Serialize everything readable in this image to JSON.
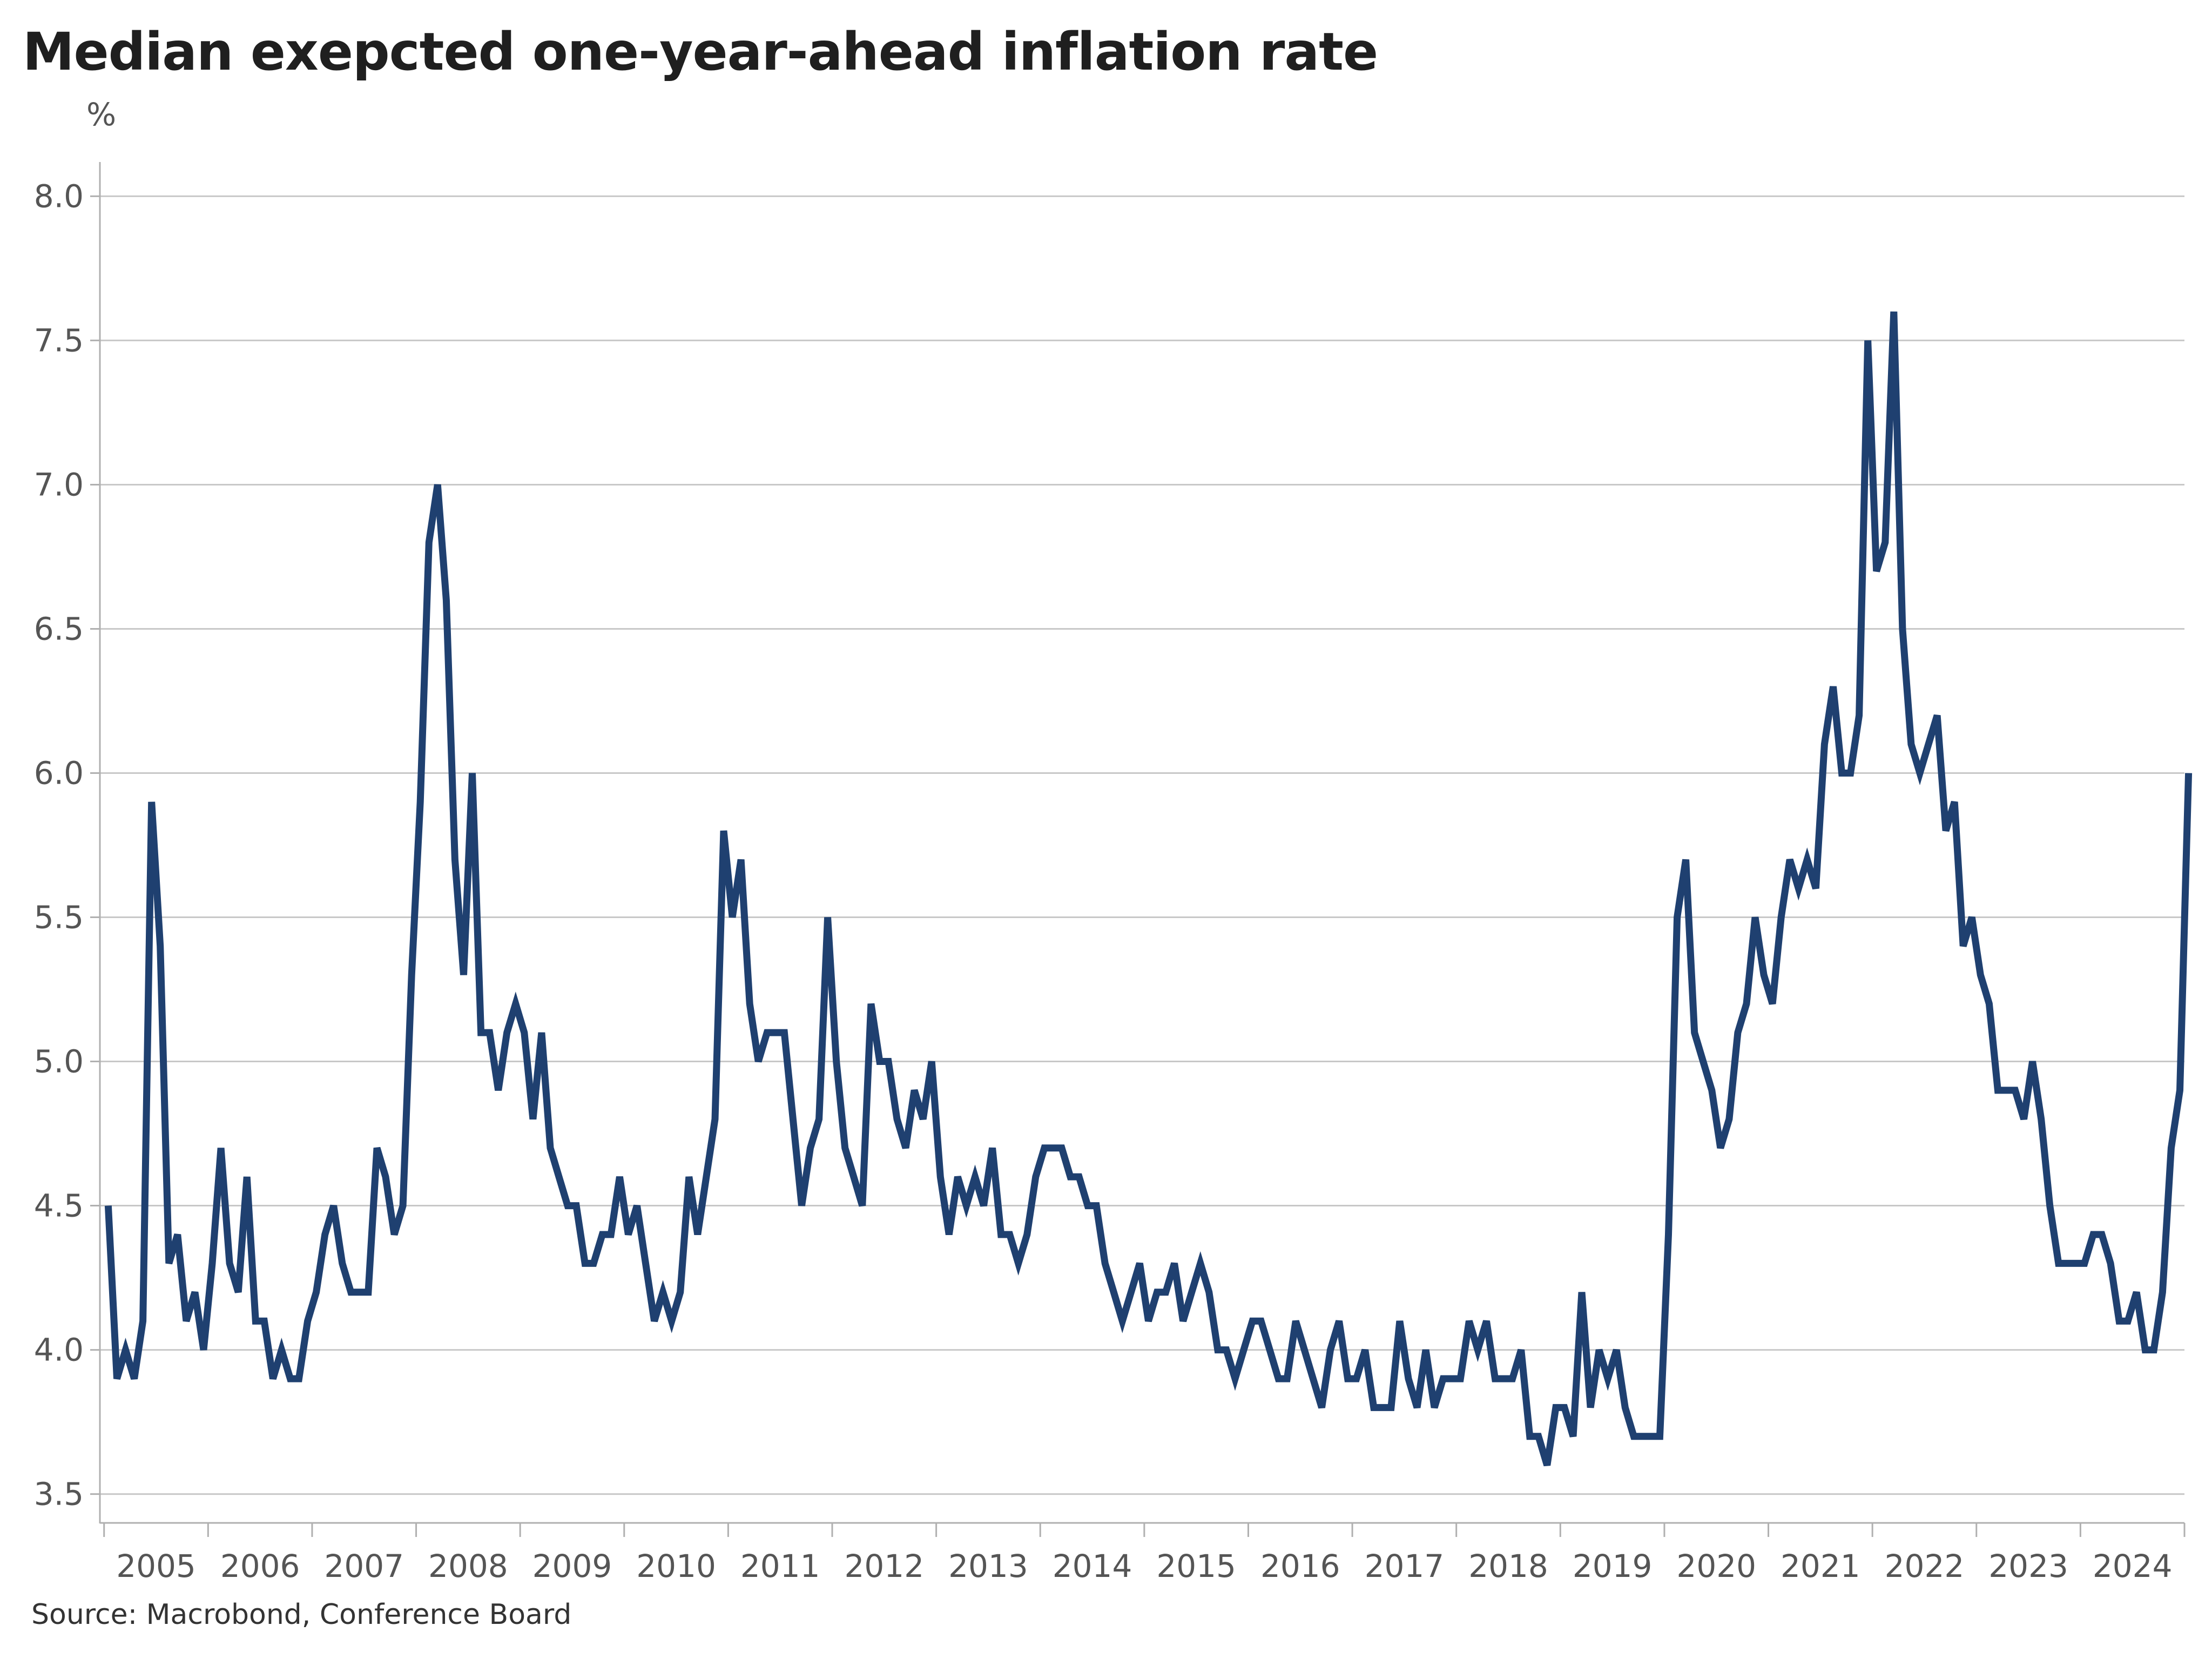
{
  "source": "Source: Macrobond, Conference Board",
  "colors": {
    "line": "#1f4070",
    "grid": "#c8c8c8",
    "axis": "#b0b0b0",
    "text": "#555555"
  },
  "chart_data": {
    "type": "line",
    "title": "Median exepcted one-year-ahead inflation rate",
    "ylabel": "%",
    "xlabel": "",
    "ylim": [
      3.4,
      8.1
    ],
    "xlim": [
      2004.96,
      2025.0
    ],
    "yticks": [
      3.5,
      4.0,
      4.5,
      5.0,
      5.5,
      6.0,
      6.5,
      7.0,
      7.5,
      8.0
    ],
    "ytick_labels": [
      "3.5",
      "4.0",
      "4.5",
      "5.0",
      "5.5",
      "6.0",
      "6.5",
      "7.0",
      "7.5",
      "8.0"
    ],
    "xtick_boundaries": [
      2005,
      2006,
      2007,
      2008,
      2009,
      2010,
      2011,
      2012,
      2013,
      2014,
      2015,
      2016,
      2017,
      2018,
      2019,
      2020,
      2021,
      2022,
      2023,
      2024,
      2025
    ],
    "xtick_labels": [
      "2005",
      "2006",
      "2007",
      "2008",
      "2009",
      "2010",
      "2011",
      "2012",
      "2013",
      "2014",
      "2015",
      "2016",
      "2017",
      "2018",
      "2019",
      "2020",
      "2021",
      "2022",
      "2023",
      "2024"
    ],
    "grid": true,
    "series": [
      {
        "name": "Median expected one-year-ahead inflation",
        "start": 2005.04,
        "step": 0.08333,
        "values": [
          4.5,
          3.9,
          4.0,
          3.9,
          4.1,
          5.9,
          5.4,
          4.3,
          4.4,
          4.1,
          4.2,
          4.0,
          4.3,
          4.7,
          4.3,
          4.2,
          4.6,
          4.1,
          4.1,
          3.9,
          4.0,
          3.9,
          3.9,
          4.1,
          4.2,
          4.4,
          4.5,
          4.3,
          4.2,
          4.2,
          4.2,
          4.7,
          4.6,
          4.4,
          4.5,
          5.3,
          5.9,
          6.8,
          7.0,
          6.6,
          5.7,
          5.3,
          6.0,
          5.1,
          5.1,
          4.9,
          5.1,
          5.2,
          5.1,
          4.8,
          5.1,
          4.7,
          4.6,
          4.5,
          4.5,
          4.3,
          4.3,
          4.4,
          4.4,
          4.6,
          4.4,
          4.5,
          4.3,
          4.1,
          4.2,
          4.1,
          4.2,
          4.6,
          4.4,
          4.6,
          4.8,
          5.8,
          5.5,
          5.7,
          5.2,
          5.0,
          5.1,
          5.1,
          5.1,
          4.8,
          4.5,
          4.7,
          4.8,
          5.5,
          5.0,
          4.7,
          4.6,
          4.5,
          5.2,
          5.0,
          5.0,
          4.8,
          4.7,
          4.9,
          4.8,
          5.0,
          4.6,
          4.4,
          4.6,
          4.5,
          4.6,
          4.5,
          4.7,
          4.4,
          4.4,
          4.3,
          4.4,
          4.6,
          4.7,
          4.7,
          4.7,
          4.6,
          4.6,
          4.5,
          4.5,
          4.3,
          4.2,
          4.1,
          4.2,
          4.3,
          4.1,
          4.2,
          4.2,
          4.3,
          4.1,
          4.2,
          4.3,
          4.2,
          4.0,
          4.0,
          3.9,
          4.0,
          4.1,
          4.1,
          4.0,
          3.9,
          3.9,
          4.1,
          4.0,
          3.9,
          3.8,
          4.0,
          4.1,
          3.9,
          3.9,
          4.0,
          3.8,
          3.8,
          3.8,
          4.1,
          3.9,
          3.8,
          4.0,
          3.8,
          3.9,
          3.9,
          3.9,
          4.1,
          4.0,
          4.1,
          3.9,
          3.9,
          3.9,
          4.0,
          3.7,
          3.7,
          3.6,
          3.8,
          3.8,
          3.7,
          4.2,
          3.8,
          4.0,
          3.9,
          4.0,
          3.8,
          3.7,
          3.7,
          3.7,
          3.7,
          4.4,
          5.5,
          5.7,
          5.1,
          5.0,
          4.9,
          4.7,
          4.8,
          5.1,
          5.2,
          5.5,
          5.3,
          5.2,
          5.5,
          5.7,
          5.6,
          5.7,
          5.6,
          6.1,
          6.3,
          6.0,
          6.0,
          6.2,
          7.5,
          6.7,
          6.8,
          7.6,
          6.5,
          6.1,
          6.0,
          6.1,
          6.2,
          5.8,
          5.9,
          5.4,
          5.5,
          5.3,
          5.2,
          4.9,
          4.9,
          4.9,
          4.8,
          5.0,
          4.8,
          4.5,
          4.3,
          4.3,
          4.3,
          4.3,
          4.4,
          4.4,
          4.3,
          4.1,
          4.1,
          4.2,
          4.0,
          4.0,
          4.2,
          4.7,
          4.9,
          6.0
        ]
      }
    ]
  }
}
